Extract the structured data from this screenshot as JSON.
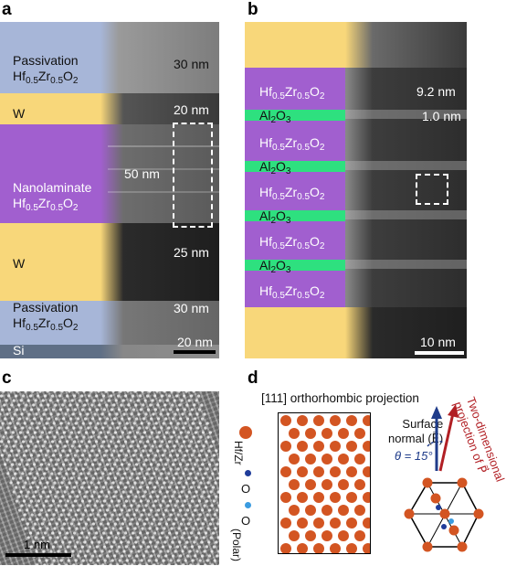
{
  "panels": {
    "a": {
      "label": "a",
      "layers": {
        "passivation_top": {
          "line1": "Passivation",
          "line2_base": "Hf",
          "s1": "0.5",
          "mid": "Zr",
          "s2": "0.5",
          "end": "O",
          "s3": "2"
        },
        "w_top": "W",
        "nanolaminate": {
          "line1": "Nanolaminate",
          "line2_base": "Hf",
          "s1": "0.5",
          "mid": "Zr",
          "s2": "0.5",
          "end": "O",
          "s3": "2"
        },
        "w_bottom": "W",
        "passivation_bottom": {
          "line1": "Passivation",
          "line2_base": "Hf",
          "s1": "0.5",
          "mid": "Zr",
          "s2": "0.5",
          "end": "O",
          "s3": "2"
        },
        "si": "Si"
      },
      "measurements": [
        "30 nm",
        "20 nm",
        "50 nm",
        "25 nm",
        "30 nm"
      ],
      "scale_bar": "20 nm"
    },
    "b": {
      "label": "b",
      "hzo": {
        "base": "Hf",
        "s1": "0.5",
        "mid": "Zr",
        "s2": "0.5",
        "end": "O",
        "s3": "2"
      },
      "al2o3": {
        "base": "Al",
        "s1": "2",
        "end": "O",
        "s2": "3"
      },
      "measurements": [
        "9.2 nm",
        "1.0 nm"
      ],
      "scale_bar": "10 nm"
    },
    "c": {
      "label": "c",
      "scale_bar": "1 nm"
    },
    "d": {
      "label": "d",
      "title": "[111] orthorhombic projection",
      "legend": {
        "hfzr": "Hf/Zr",
        "o": "O",
        "o_polar": "O",
        "polar": "(Polar)"
      },
      "surface_normal_line1": "Surface",
      "surface_normal_line2": "normal (E⃗)",
      "angle": "θ = 15°",
      "projection_line1": "Two-dimensional",
      "projection_line2": "projection of P⃗"
    }
  },
  "colors": {
    "passivation": "#a7b6d8",
    "tungsten": "#f8d77a",
    "hzo": "#a15fcf",
    "al2o3": "#2ee07f",
    "si": "#5f6f86",
    "atom": "#d35522",
    "oxygen_blue": "#1f3c9a",
    "oxygen_polar": "#3a9be0",
    "arrow_red": "#b11f24",
    "arrow_blue": "#1f3c8a"
  }
}
